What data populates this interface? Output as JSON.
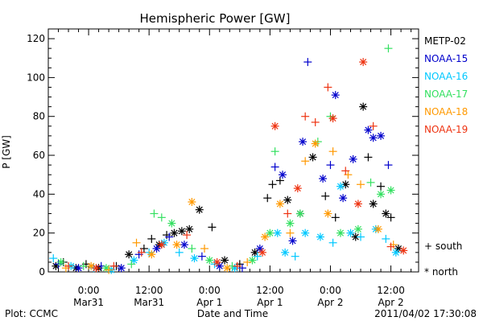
{
  "chart_data": {
    "type": "scatter",
    "title": "Hemispheric Power [GW]",
    "xlabel": "Date and Time",
    "ylabel": "P [GW]",
    "ylim": [
      0,
      125
    ],
    "yticks": [
      0,
      20,
      40,
      60,
      80,
      100,
      120
    ],
    "xlim": [
      "2011-03-30T16:00",
      "2011-04-02T17:30"
    ],
    "xticks": [
      {
        "t": "2011-03-31T00:00",
        "line1": "0:00",
        "line2": "Mar31"
      },
      {
        "t": "2011-03-31T12:00",
        "line1": "12:00",
        "line2": "Mar31"
      },
      {
        "t": "2011-04-01T00:00",
        "line1": "0:00",
        "line2": "Apr 1"
      },
      {
        "t": "2011-04-01T12:00",
        "line1": "12:00",
        "line2": "Apr 1"
      },
      {
        "t": "2011-04-02T00:00",
        "line1": "0:00",
        "line2": "Apr 2"
      },
      {
        "t": "2011-04-02T12:00",
        "line1": "12:00",
        "line2": "Apr 2"
      }
    ],
    "grid": false,
    "legend_position": "right",
    "symbol_legend": [
      {
        "symbol": "plus",
        "label": "+ south"
      },
      {
        "symbol": "star",
        "label": "* north"
      }
    ],
    "series": [
      {
        "name": "METP-02",
        "color": "#000000",
        "points": [
          {
            "t": "2011-03-30T17:30",
            "y": 3,
            "m": "star"
          },
          {
            "t": "2011-03-30T19:00",
            "y": 5,
            "m": "plus"
          },
          {
            "t": "2011-03-30T21:30",
            "y": 2,
            "m": "star"
          },
          {
            "t": "2011-03-30T23:30",
            "y": 4,
            "m": "plus"
          },
          {
            "t": "2011-03-31T02:00",
            "y": 2,
            "m": "star"
          },
          {
            "t": "2011-03-31T05:30",
            "y": 3,
            "m": "plus"
          },
          {
            "t": "2011-03-31T08:00",
            "y": 9,
            "m": "star"
          },
          {
            "t": "2011-03-31T11:00",
            "y": 12,
            "m": "plus"
          },
          {
            "t": "2011-03-31T12:30",
            "y": 17,
            "m": "plus"
          },
          {
            "t": "2011-03-31T14:00",
            "y": 14,
            "m": "star"
          },
          {
            "t": "2011-03-31T15:30",
            "y": 19,
            "m": "plus"
          },
          {
            "t": "2011-03-31T17:00",
            "y": 20,
            "m": "star"
          },
          {
            "t": "2011-03-31T18:30",
            "y": 21,
            "m": "star"
          },
          {
            "t": "2011-03-31T20:00",
            "y": 22,
            "m": "star"
          },
          {
            "t": "2011-03-31T22:00",
            "y": 32,
            "m": "star"
          },
          {
            "t": "2011-04-01T00:30",
            "y": 23,
            "m": "plus"
          },
          {
            "t": "2011-04-01T03:00",
            "y": 6,
            "m": "star"
          },
          {
            "t": "2011-04-01T06:00",
            "y": 4,
            "m": "plus"
          },
          {
            "t": "2011-04-01T09:00",
            "y": 10,
            "m": "star"
          },
          {
            "t": "2011-04-01T11:30",
            "y": 38,
            "m": "plus"
          },
          {
            "t": "2011-04-01T12:30",
            "y": 45,
            "m": "plus"
          },
          {
            "t": "2011-04-01T14:00",
            "y": 47,
            "m": "plus"
          },
          {
            "t": "2011-04-01T15:30",
            "y": 37,
            "m": "star"
          },
          {
            "t": "2011-04-01T18:00",
            "y": 30,
            "m": "star"
          },
          {
            "t": "2011-04-01T20:30",
            "y": 59,
            "m": "star"
          },
          {
            "t": "2011-04-01T23:00",
            "y": 39,
            "m": "plus"
          },
          {
            "t": "2011-04-02T01:00",
            "y": 28,
            "m": "plus"
          },
          {
            "t": "2011-04-02T03:00",
            "y": 45,
            "m": "star"
          },
          {
            "t": "2011-04-02T05:00",
            "y": 18,
            "m": "star"
          },
          {
            "t": "2011-04-02T06:30",
            "y": 85,
            "m": "star"
          },
          {
            "t": "2011-04-02T07:30",
            "y": 59,
            "m": "plus"
          },
          {
            "t": "2011-04-02T08:30",
            "y": 35,
            "m": "star"
          },
          {
            "t": "2011-04-02T10:00",
            "y": 44,
            "m": "plus"
          },
          {
            "t": "2011-04-02T11:00",
            "y": 30,
            "m": "star"
          },
          {
            "t": "2011-04-02T12:00",
            "y": 28,
            "m": "plus"
          },
          {
            "t": "2011-04-02T13:30",
            "y": 12,
            "m": "star"
          }
        ]
      },
      {
        "name": "NOAA-15",
        "color": "#0000cc",
        "points": [
          {
            "t": "2011-03-30T18:00",
            "y": 4,
            "m": "plus"
          },
          {
            "t": "2011-03-30T22:00",
            "y": 2,
            "m": "star"
          },
          {
            "t": "2011-03-31T02:30",
            "y": 3,
            "m": "plus"
          },
          {
            "t": "2011-03-31T06:30",
            "y": 2,
            "m": "star"
          },
          {
            "t": "2011-03-31T10:00",
            "y": 9,
            "m": "plus"
          },
          {
            "t": "2011-03-31T13:30",
            "y": 12,
            "m": "star"
          },
          {
            "t": "2011-03-31T16:00",
            "y": 18,
            "m": "plus"
          },
          {
            "t": "2011-03-31T19:00",
            "y": 14,
            "m": "star"
          },
          {
            "t": "2011-03-31T22:30",
            "y": 8,
            "m": "plus"
          },
          {
            "t": "2011-04-01T02:00",
            "y": 3,
            "m": "star"
          },
          {
            "t": "2011-04-01T06:30",
            "y": 2,
            "m": "plus"
          },
          {
            "t": "2011-04-01T10:00",
            "y": 12,
            "m": "star"
          },
          {
            "t": "2011-04-01T13:00",
            "y": 54,
            "m": "plus"
          },
          {
            "t": "2011-04-01T14:30",
            "y": 50,
            "m": "star"
          },
          {
            "t": "2011-04-01T16:30",
            "y": 16,
            "m": "star"
          },
          {
            "t": "2011-04-01T18:30",
            "y": 67,
            "m": "star"
          },
          {
            "t": "2011-04-01T19:30",
            "y": 108,
            "m": "plus"
          },
          {
            "t": "2011-04-01T22:30",
            "y": 48,
            "m": "star"
          },
          {
            "t": "2011-04-02T00:00",
            "y": 55,
            "m": "plus"
          },
          {
            "t": "2011-04-02T01:00",
            "y": 91,
            "m": "star"
          },
          {
            "t": "2011-04-02T02:30",
            "y": 38,
            "m": "star"
          },
          {
            "t": "2011-04-02T04:30",
            "y": 58,
            "m": "star"
          },
          {
            "t": "2011-04-02T07:30",
            "y": 73,
            "m": "star"
          },
          {
            "t": "2011-04-02T08:30",
            "y": 69,
            "m": "star"
          },
          {
            "t": "2011-04-02T10:00",
            "y": 70,
            "m": "star"
          },
          {
            "t": "2011-04-02T11:30",
            "y": 55,
            "m": "plus"
          }
        ]
      },
      {
        "name": "NOAA-16",
        "color": "#00c8ff",
        "points": [
          {
            "t": "2011-03-30T17:00",
            "y": 7,
            "m": "plus"
          },
          {
            "t": "2011-03-30T20:30",
            "y": 3,
            "m": "star"
          },
          {
            "t": "2011-03-31T01:00",
            "y": 2,
            "m": "plus"
          },
          {
            "t": "2011-03-31T04:30",
            "y": 1,
            "m": "star"
          },
          {
            "t": "2011-03-31T09:00",
            "y": 6,
            "m": "star"
          },
          {
            "t": "2011-03-31T12:00",
            "y": 10,
            "m": "plus"
          },
          {
            "t": "2011-03-31T15:00",
            "y": 15,
            "m": "star"
          },
          {
            "t": "2011-03-31T18:00",
            "y": 10,
            "m": "plus"
          },
          {
            "t": "2011-03-31T21:00",
            "y": 7,
            "m": "star"
          },
          {
            "t": "2011-04-01T01:00",
            "y": 4,
            "m": "plus"
          },
          {
            "t": "2011-04-01T05:00",
            "y": 2,
            "m": "star"
          },
          {
            "t": "2011-04-01T09:30",
            "y": 8,
            "m": "plus"
          },
          {
            "t": "2011-04-01T13:30",
            "y": 20,
            "m": "star"
          },
          {
            "t": "2011-04-01T15:00",
            "y": 10,
            "m": "star"
          },
          {
            "t": "2011-04-01T17:00",
            "y": 8,
            "m": "plus"
          },
          {
            "t": "2011-04-01T19:00",
            "y": 20,
            "m": "star"
          },
          {
            "t": "2011-04-01T22:00",
            "y": 18,
            "m": "star"
          },
          {
            "t": "2011-04-02T00:30",
            "y": 15,
            "m": "plus"
          },
          {
            "t": "2011-04-02T02:00",
            "y": 44,
            "m": "star"
          },
          {
            "t": "2011-04-02T04:00",
            "y": 20,
            "m": "star"
          },
          {
            "t": "2011-04-02T06:00",
            "y": 18,
            "m": "plus"
          },
          {
            "t": "2011-04-02T09:00",
            "y": 22,
            "m": "star"
          },
          {
            "t": "2011-04-02T11:00",
            "y": 17,
            "m": "plus"
          },
          {
            "t": "2011-04-02T13:00",
            "y": 10,
            "m": "star"
          }
        ]
      },
      {
        "name": "NOAA-17",
        "color": "#33e060",
        "points": [
          {
            "t": "2011-03-30T18:30",
            "y": 5,
            "m": "star"
          },
          {
            "t": "2011-03-30T23:00",
            "y": 3,
            "m": "plus"
          },
          {
            "t": "2011-03-31T03:30",
            "y": 2,
            "m": "star"
          },
          {
            "t": "2011-03-31T08:30",
            "y": 4,
            "m": "plus"
          },
          {
            "t": "2011-03-31T13:00",
            "y": 30,
            "m": "plus"
          },
          {
            "t": "2011-03-31T14:30",
            "y": 28,
            "m": "plus"
          },
          {
            "t": "2011-03-31T16:30",
            "y": 25,
            "m": "star"
          },
          {
            "t": "2011-03-31T20:30",
            "y": 12,
            "m": "plus"
          },
          {
            "t": "2011-04-01T00:00",
            "y": 6,
            "m": "star"
          },
          {
            "t": "2011-04-01T04:30",
            "y": 3,
            "m": "plus"
          },
          {
            "t": "2011-04-01T08:30",
            "y": 6,
            "m": "star"
          },
          {
            "t": "2011-04-01T12:00",
            "y": 20,
            "m": "star"
          },
          {
            "t": "2011-04-01T13:00",
            "y": 62,
            "m": "plus"
          },
          {
            "t": "2011-04-01T16:00",
            "y": 25,
            "m": "star"
          },
          {
            "t": "2011-04-01T18:00",
            "y": 30,
            "m": "star"
          },
          {
            "t": "2011-04-01T21:30",
            "y": 67,
            "m": "plus"
          },
          {
            "t": "2011-04-02T00:00",
            "y": 80,
            "m": "plus"
          },
          {
            "t": "2011-04-02T02:00",
            "y": 20,
            "m": "star"
          },
          {
            "t": "2011-04-02T05:30",
            "y": 22,
            "m": "star"
          },
          {
            "t": "2011-04-02T08:00",
            "y": 46,
            "m": "plus"
          },
          {
            "t": "2011-04-02T10:00",
            "y": 40,
            "m": "star"
          },
          {
            "t": "2011-04-02T11:30",
            "y": 115,
            "m": "plus"
          },
          {
            "t": "2011-04-02T12:00",
            "y": 42,
            "m": "star"
          }
        ]
      },
      {
        "name": "NOAA-18",
        "color": "#ff9900",
        "points": [
          {
            "t": "2011-03-30T19:30",
            "y": 2,
            "m": "plus"
          },
          {
            "t": "2011-03-31T00:30",
            "y": 3,
            "m": "star"
          },
          {
            "t": "2011-03-31T04:00",
            "y": 1,
            "m": "plus"
          },
          {
            "t": "2011-03-31T09:30",
            "y": 15,
            "m": "plus"
          },
          {
            "t": "2011-03-31T12:30",
            "y": 9,
            "m": "star"
          },
          {
            "t": "2011-03-31T17:30",
            "y": 14,
            "m": "star"
          },
          {
            "t": "2011-03-31T20:30",
            "y": 36,
            "m": "star"
          },
          {
            "t": "2011-03-31T23:00",
            "y": 12,
            "m": "plus"
          },
          {
            "t": "2011-04-01T03:30",
            "y": 2,
            "m": "star"
          },
          {
            "t": "2011-04-01T07:30",
            "y": 5,
            "m": "plus"
          },
          {
            "t": "2011-04-01T11:00",
            "y": 18,
            "m": "star"
          },
          {
            "t": "2011-04-01T14:00",
            "y": 35,
            "m": "star"
          },
          {
            "t": "2011-04-01T16:00",
            "y": 20,
            "m": "plus"
          },
          {
            "t": "2011-04-01T19:00",
            "y": 57,
            "m": "plus"
          },
          {
            "t": "2011-04-01T21:00",
            "y": 66,
            "m": "star"
          },
          {
            "t": "2011-04-01T23:30",
            "y": 30,
            "m": "star"
          },
          {
            "t": "2011-04-02T00:30",
            "y": 62,
            "m": "plus"
          },
          {
            "t": "2011-04-02T03:30",
            "y": 50,
            "m": "plus"
          },
          {
            "t": "2011-04-02T06:00",
            "y": 45,
            "m": "plus"
          },
          {
            "t": "2011-04-02T09:30",
            "y": 22,
            "m": "star"
          },
          {
            "t": "2011-04-02T12:30",
            "y": 14,
            "m": "plus"
          }
        ]
      },
      {
        "name": "NOAA-19",
        "color": "#ee3311",
        "points": [
          {
            "t": "2011-03-30T20:00",
            "y": 3,
            "m": "plus"
          },
          {
            "t": "2011-03-31T01:30",
            "y": 2,
            "m": "star"
          },
          {
            "t": "2011-03-31T05:00",
            "y": 3,
            "m": "plus"
          },
          {
            "t": "2011-03-31T10:30",
            "y": 10,
            "m": "plus"
          },
          {
            "t": "2011-03-31T14:30",
            "y": 14,
            "m": "star"
          },
          {
            "t": "2011-03-31T19:30",
            "y": 19,
            "m": "plus"
          },
          {
            "t": "2011-04-01T01:30",
            "y": 5,
            "m": "star"
          },
          {
            "t": "2011-04-01T05:30",
            "y": 3,
            "m": "plus"
          },
          {
            "t": "2011-04-01T10:30",
            "y": 10,
            "m": "star"
          },
          {
            "t": "2011-04-01T13:00",
            "y": 75,
            "m": "star"
          },
          {
            "t": "2011-04-01T15:30",
            "y": 30,
            "m": "plus"
          },
          {
            "t": "2011-04-01T17:30",
            "y": 43,
            "m": "star"
          },
          {
            "t": "2011-04-01T19:00",
            "y": 80,
            "m": "plus"
          },
          {
            "t": "2011-04-01T21:00",
            "y": 77,
            "m": "plus"
          },
          {
            "t": "2011-04-01T23:30",
            "y": 95,
            "m": "plus"
          },
          {
            "t": "2011-04-02T00:30",
            "y": 79,
            "m": "star"
          },
          {
            "t": "2011-04-02T03:00",
            "y": 52,
            "m": "plus"
          },
          {
            "t": "2011-04-02T05:30",
            "y": 35,
            "m": "star"
          },
          {
            "t": "2011-04-02T06:30",
            "y": 108,
            "m": "star"
          },
          {
            "t": "2011-04-02T08:30",
            "y": 75,
            "m": "plus"
          },
          {
            "t": "2011-04-02T12:00",
            "y": 13,
            "m": "plus"
          },
          {
            "t": "2011-04-02T14:30",
            "y": 11,
            "m": "star"
          }
        ]
      }
    ]
  },
  "footer": {
    "left": "Plot: CCMC",
    "right": "2011/04/02 17:30:08"
  }
}
